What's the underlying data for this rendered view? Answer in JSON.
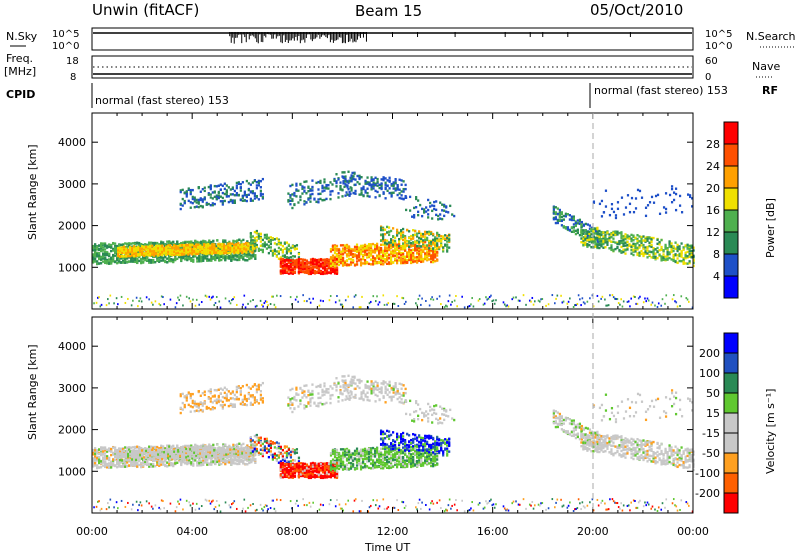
{
  "header": {
    "station": "Unwin (fitACF)",
    "beam": "Beam 15",
    "date": "05/Oct/2010"
  },
  "panels": {
    "nsky_label": "N.Sky",
    "nsky_ticks": [
      "10^5",
      "10^0"
    ],
    "nsearch_label": "N.Search",
    "nsearch_ticks": [
      "10^5",
      "10^0"
    ],
    "freq_label_1": "Freq.",
    "freq_label_2": "[MHz]",
    "freq_ticks": [
      "18",
      "8"
    ],
    "nave_label": "Nave",
    "nave_ticks": [
      "60",
      "0"
    ],
    "cpid_label": "CPID",
    "cpid_mode_1": "normal (fast stereo) 153",
    "cpid_mode_2": "normal (fast stereo) 153",
    "rf_label": "RF"
  },
  "colors": {
    "power_scale": [
      "#0000ff",
      "#1e50c8",
      "#2a8a55",
      "#4fb04f",
      "#f0e000",
      "#ffa000",
      "#ff5000",
      "#ff0000"
    ],
    "velocity_scale": [
      "#ff0000",
      "#ff6000",
      "#ffa020",
      "#c8c8c8",
      "#c8c8c8",
      "#60c830",
      "#2a8a55",
      "#2050c0",
      "#0000ff"
    ]
  },
  "chart_data": [
    {
      "type": "heatmap",
      "name": "power-panel",
      "ylabel": "Slant Range [km]",
      "y_ticks": [
        1000,
        2000,
        3000,
        4000
      ],
      "ylim": [
        0,
        4700
      ],
      "x_ticks": [
        "00:00",
        "04:00",
        "08:00",
        "12:00",
        "16:00",
        "20:00",
        "00:00"
      ],
      "xlim_hours": [
        0,
        24
      ],
      "colorbar_label": "Power [dB]",
      "colorbar_ticks": [
        4,
        8,
        12,
        16,
        20,
        24,
        28
      ],
      "colorbar_range": [
        0,
        32
      ]
    },
    {
      "type": "heatmap",
      "name": "velocity-panel",
      "ylabel": "Slant Range [km]",
      "y_ticks": [
        1000,
        2000,
        3000,
        4000
      ],
      "ylim": [
        0,
        4700
      ],
      "x_ticks": [
        "00:00",
        "04:00",
        "08:00",
        "12:00",
        "16:00",
        "20:00",
        "00:00"
      ],
      "xlim_hours": [
        0,
        24
      ],
      "xlabel": "Time UT",
      "colorbar_label": "Velocity [m s⁻¹]",
      "colorbar_ticks": [
        200,
        100,
        50,
        15,
        -15,
        -50,
        -100,
        -200
      ],
      "colorbar_range": [
        -250,
        250
      ]
    }
  ]
}
